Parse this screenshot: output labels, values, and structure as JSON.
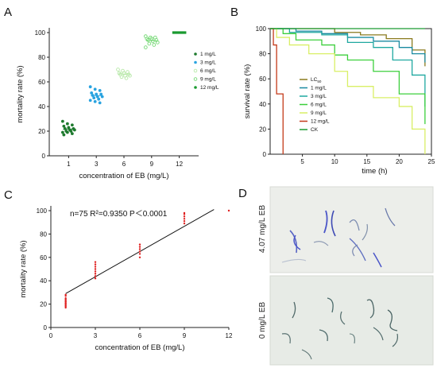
{
  "panels": [
    "A",
    "B",
    "C",
    "D"
  ],
  "chart_data": [
    {
      "id": "A",
      "type": "scatter",
      "xlabel": "concentration of EB (mg/L)",
      "ylabel": "mortality rate (%)",
      "categories": [
        "1",
        "3",
        "6",
        "9",
        "12"
      ],
      "ylim": [
        0,
        100
      ],
      "yticks": [
        0,
        20,
        40,
        60,
        80,
        100
      ],
      "legend_position": "right",
      "series": [
        {
          "name": "1 mg/L",
          "color": "#1e7a2e",
          "values": [
            28,
            26,
            25,
            24,
            23,
            22,
            22,
            21,
            21,
            20,
            20,
            19,
            19,
            18,
            17
          ]
        },
        {
          "name": "3 mg/L",
          "color": "#29a3e0",
          "values": [
            56,
            54,
            53,
            51,
            50,
            50,
            49,
            48,
            48,
            47,
            46,
            45,
            44,
            43
          ]
        },
        {
          "name": "6 mg/L",
          "color": "#b7e8a8",
          "values": [
            70,
            69,
            68,
            67,
            67,
            66,
            66,
            65,
            65,
            64,
            63
          ]
        },
        {
          "name": "9 mg/L",
          "color": "#77d977",
          "values": [
            97,
            96,
            96,
            95,
            95,
            94,
            94,
            93,
            92,
            91,
            90,
            88
          ]
        },
        {
          "name": "12 mg/L",
          "color": "#1a9a30",
          "values": [
            100,
            100,
            100,
            100,
            100,
            100,
            100,
            100,
            100,
            100,
            100,
            100,
            100,
            100,
            100
          ]
        }
      ]
    },
    {
      "id": "B",
      "type": "line",
      "xlabel": "time (h)",
      "ylabel": "survival rate (%)",
      "xlim": [
        0,
        25
      ],
      "ylim": [
        0,
        100
      ],
      "xticks": [
        5,
        10,
        15,
        20,
        25
      ],
      "yticks": [
        0,
        20,
        40,
        60,
        80,
        100
      ],
      "legend_position": "bottom-left",
      "series": [
        {
          "name": "LC",
          "name_sub": "50",
          "color": "#8a7a1e",
          "points": [
            [
              0,
              100
            ],
            [
              5,
              100
            ],
            [
              10,
              97
            ],
            [
              14,
              95
            ],
            [
              18,
              92
            ],
            [
              22,
              83
            ],
            [
              24,
              70
            ]
          ]
        },
        {
          "name": "1 mg/L",
          "color": "#1a8aa0",
          "points": [
            [
              0,
              100
            ],
            [
              4,
              98
            ],
            [
              8,
              96
            ],
            [
              12,
              93
            ],
            [
              16,
              90
            ],
            [
              20,
              85
            ],
            [
              22,
              80
            ],
            [
              24,
              73
            ]
          ]
        },
        {
          "name": "3 mg/L",
          "color": "#1fa8a0",
          "points": [
            [
              0,
              100
            ],
            [
              3,
              97
            ],
            [
              8,
              95
            ],
            [
              12,
              89
            ],
            [
              16,
              85
            ],
            [
              19,
              75
            ],
            [
              22,
              63
            ],
            [
              24,
              38
            ]
          ]
        },
        {
          "name": "6 mg/L",
          "color": "#3ccf3c",
          "points": [
            [
              0,
              100
            ],
            [
              2,
              96
            ],
            [
              4,
              91
            ],
            [
              8,
              87
            ],
            [
              10,
              79
            ],
            [
              12,
              75
            ],
            [
              16,
              66
            ],
            [
              20,
              48
            ],
            [
              24,
              24
            ]
          ]
        },
        {
          "name": "9 mg/L",
          "color": "#d9ef66",
          "points": [
            [
              0,
              100
            ],
            [
              1,
              93
            ],
            [
              3,
              87
            ],
            [
              6,
              80
            ],
            [
              10,
              66
            ],
            [
              12,
              54
            ],
            [
              16,
              45
            ],
            [
              20,
              38
            ],
            [
              22,
              20
            ],
            [
              24,
              0
            ]
          ]
        },
        {
          "name": "12 mg/L",
          "color": "#c43a1a",
          "points": [
            [
              0,
              100
            ],
            [
              0.5,
              87
            ],
            [
              1,
              48
            ],
            [
              2,
              0
            ]
          ]
        },
        {
          "name": "CK",
          "color": "#1a9a30",
          "points": [
            [
              0,
              100
            ],
            [
              24,
              100
            ]
          ]
        }
      ]
    },
    {
      "id": "C",
      "type": "scatter",
      "xlabel": "concentration of EB (mg/L)",
      "ylabel": "mortality rate (%)",
      "annotation": "n=75 R²=0.9350 P＜0.0001",
      "xlim": [
        0,
        12
      ],
      "ylim": [
        0,
        100
      ],
      "xticks": [
        0,
        3,
        6,
        9,
        12
      ],
      "yticks": [
        0,
        20,
        40,
        60,
        80,
        100
      ],
      "points_color": "#e02020",
      "points": [
        [
          1,
          17
        ],
        [
          1,
          18
        ],
        [
          1,
          19
        ],
        [
          1,
          20
        ],
        [
          1,
          21
        ],
        [
          1,
          22
        ],
        [
          1,
          23
        ],
        [
          1,
          24
        ],
        [
          1,
          25
        ],
        [
          1,
          27
        ],
        [
          1,
          28
        ],
        [
          3,
          42
        ],
        [
          3,
          44
        ],
        [
          3,
          46
        ],
        [
          3,
          48
        ],
        [
          3,
          50
        ],
        [
          3,
          52
        ],
        [
          3,
          54
        ],
        [
          3,
          56
        ],
        [
          6,
          60
        ],
        [
          6,
          63
        ],
        [
          6,
          65
        ],
        [
          6,
          67
        ],
        [
          6,
          69
        ],
        [
          6,
          71
        ],
        [
          9,
          89
        ],
        [
          9,
          91
        ],
        [
          9,
          93
        ],
        [
          9,
          95
        ],
        [
          9,
          97
        ],
        [
          9,
          98
        ],
        [
          12,
          100
        ]
      ],
      "fit_line": [
        [
          1,
          29
        ],
        [
          11,
          101
        ]
      ]
    }
  ],
  "photos": {
    "top_label": "4.07 mg/L EB",
    "bottom_label": "0 mg/L EB"
  }
}
